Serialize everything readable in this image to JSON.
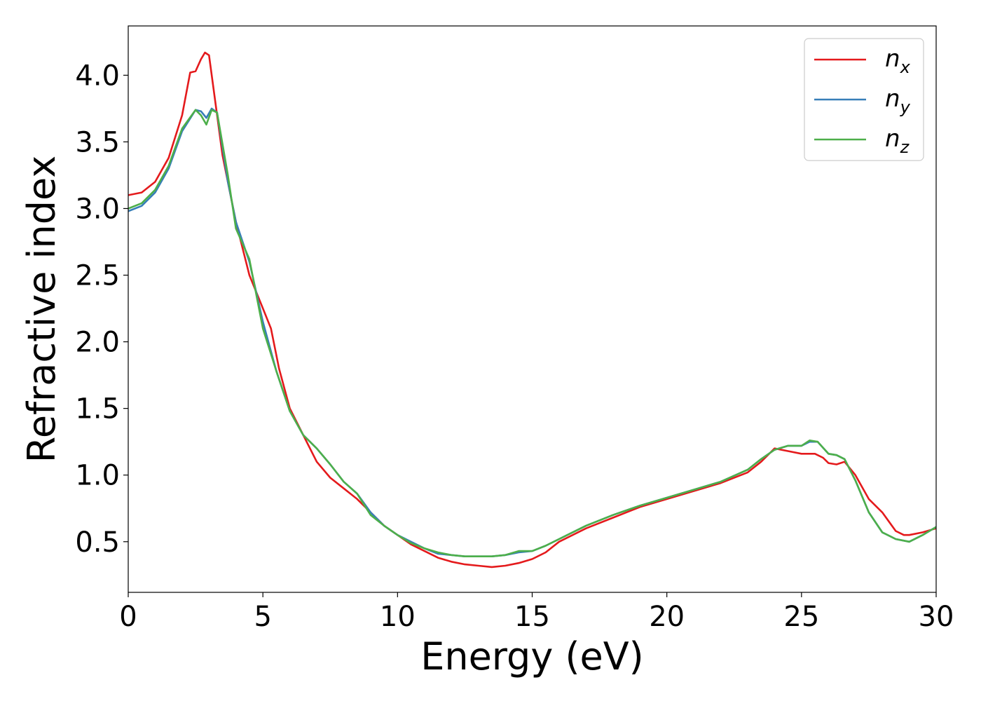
{
  "chart_data": {
    "type": "line",
    "title": "",
    "xlabel": "Energy (eV)",
    "ylabel": "Refractive index",
    "xlim": [
      0,
      30
    ],
    "ylim": [
      0.12,
      4.37
    ],
    "xticks": [
      "0",
      "5",
      "10",
      "15",
      "20",
      "25",
      "30"
    ],
    "yticks": [
      "0.5",
      "1.0",
      "1.5",
      "2.0",
      "2.5",
      "3.0",
      "3.5",
      "4.0"
    ],
    "grid": false,
    "legend_position": "top-right",
    "series": [
      {
        "name": "n",
        "subscript": "x",
        "color": "#e41a1c",
        "x": [
          0,
          0.5,
          1,
          1.5,
          2,
          2.3,
          2.5,
          2.7,
          2.85,
          3.0,
          3.2,
          3.5,
          4,
          4.5,
          5,
          5.3,
          5.6,
          6,
          6.5,
          7,
          7.5,
          8,
          8.5,
          9,
          9.5,
          10,
          10.5,
          11,
          11.5,
          12,
          12.5,
          13,
          13.5,
          14,
          14.5,
          15,
          15.5,
          16,
          17,
          18,
          19,
          20,
          21,
          22,
          23,
          23.5,
          24,
          24.5,
          25,
          25.5,
          25.8,
          26,
          26.3,
          26.6,
          27,
          27.5,
          28,
          28.5,
          28.8,
          29,
          29.5,
          30
        ],
        "y": [
          3.1,
          3.12,
          3.2,
          3.38,
          3.7,
          4.02,
          4.03,
          4.12,
          4.17,
          4.15,
          3.85,
          3.4,
          2.9,
          2.5,
          2.25,
          2.1,
          1.8,
          1.5,
          1.3,
          1.1,
          0.98,
          0.9,
          0.82,
          0.72,
          0.62,
          0.55,
          0.48,
          0.43,
          0.38,
          0.35,
          0.33,
          0.32,
          0.31,
          0.32,
          0.34,
          0.37,
          0.42,
          0.5,
          0.6,
          0.68,
          0.76,
          0.82,
          0.88,
          0.94,
          1.02,
          1.1,
          1.2,
          1.18,
          1.16,
          1.16,
          1.13,
          1.09,
          1.08,
          1.1,
          1.0,
          0.82,
          0.72,
          0.58,
          0.55,
          0.55,
          0.57,
          0.6
        ]
      },
      {
        "name": "n",
        "subscript": "y",
        "color": "#377eb8",
        "x": [
          0,
          0.5,
          1,
          1.5,
          2,
          2.5,
          2.7,
          2.9,
          3.1,
          3.3,
          3.7,
          4,
          4.5,
          5,
          5.5,
          6,
          6.5,
          7,
          7.5,
          8,
          8.5,
          9,
          9.5,
          10,
          10.5,
          11,
          11.5,
          12,
          12.5,
          13,
          13.5,
          14,
          14.5,
          15,
          15.5,
          16,
          17,
          18,
          19,
          20,
          21,
          22,
          23,
          23.5,
          24,
          24.5,
          25,
          25.3,
          25.6,
          26,
          26.3,
          26.6,
          27,
          27.5,
          28,
          28.5,
          29,
          29.5,
          30
        ],
        "y": [
          2.98,
          3.02,
          3.12,
          3.3,
          3.58,
          3.74,
          3.73,
          3.68,
          3.75,
          3.72,
          3.2,
          2.9,
          2.6,
          2.15,
          1.78,
          1.48,
          1.3,
          1.2,
          1.08,
          0.95,
          0.86,
          0.72,
          0.62,
          0.55,
          0.5,
          0.45,
          0.41,
          0.4,
          0.39,
          0.39,
          0.39,
          0.4,
          0.42,
          0.43,
          0.47,
          0.52,
          0.62,
          0.7,
          0.77,
          0.83,
          0.89,
          0.95,
          1.04,
          1.12,
          1.19,
          1.22,
          1.22,
          1.25,
          1.25,
          1.16,
          1.15,
          1.12,
          0.96,
          0.72,
          0.57,
          0.52,
          0.5,
          0.55,
          0.61
        ]
      },
      {
        "name": "n",
        "subscript": "z",
        "color": "#4daf4a",
        "x": [
          0,
          0.5,
          1,
          1.5,
          2,
          2.5,
          2.7,
          2.9,
          3.1,
          3.3,
          3.7,
          4,
          4.5,
          5,
          5.5,
          6,
          6.5,
          7,
          7.5,
          8,
          8.5,
          9,
          9.5,
          10,
          10.5,
          11,
          11.5,
          12,
          12.5,
          13,
          13.5,
          14,
          14.5,
          15,
          15.5,
          16,
          17,
          18,
          19,
          20,
          21,
          22,
          23,
          23.5,
          24,
          24.5,
          25,
          25.3,
          25.6,
          26,
          26.3,
          26.6,
          27,
          27.5,
          28,
          28.5,
          29,
          29.5,
          30
        ],
        "y": [
          3.0,
          3.04,
          3.14,
          3.32,
          3.6,
          3.74,
          3.7,
          3.63,
          3.74,
          3.72,
          3.25,
          2.85,
          2.62,
          2.1,
          1.78,
          1.48,
          1.3,
          1.2,
          1.08,
          0.95,
          0.86,
          0.7,
          0.62,
          0.55,
          0.49,
          0.45,
          0.42,
          0.4,
          0.39,
          0.39,
          0.39,
          0.4,
          0.43,
          0.43,
          0.47,
          0.52,
          0.62,
          0.7,
          0.77,
          0.83,
          0.89,
          0.95,
          1.04,
          1.12,
          1.19,
          1.22,
          1.22,
          1.26,
          1.25,
          1.16,
          1.15,
          1.12,
          0.96,
          0.72,
          0.57,
          0.52,
          0.5,
          0.55,
          0.61
        ]
      }
    ]
  }
}
